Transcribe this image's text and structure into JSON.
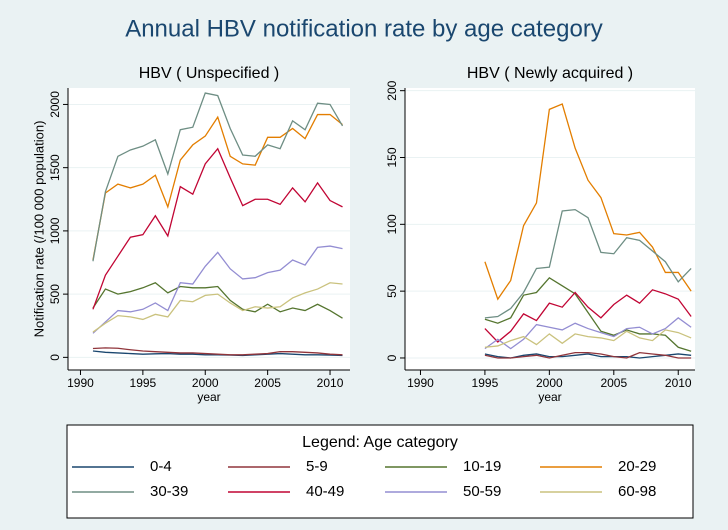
{
  "title": "Annual HBV notification rate by age category",
  "legend_title": "Legend: Age category",
  "chart_data": [
    {
      "type": "line",
      "title": "HBV ( Unspecified )",
      "xlabel": "year",
      "ylabel": "Notification rate (/100 000 population)",
      "x": [
        1991,
        1992,
        1993,
        1994,
        1995,
        1996,
        1997,
        1998,
        1999,
        2000,
        2001,
        2002,
        2003,
        2004,
        2005,
        2006,
        2007,
        2008,
        2009,
        2010,
        2011
      ],
      "xlim": [
        1989,
        2011.6
      ],
      "xticks": [
        1990,
        1995,
        2000,
        2005,
        2010
      ],
      "ylim": [
        -100,
        2130
      ],
      "yticks": [
        0,
        500,
        1000,
        1500,
        2000
      ],
      "grid": true,
      "series": [
        {
          "name": "0-4",
          "color": "#1a476f",
          "values": [
            50,
            40,
            35,
            30,
            25,
            28,
            30,
            25,
            25,
            20,
            20,
            18,
            15,
            20,
            25,
            30,
            25,
            20,
            20,
            18,
            15
          ]
        },
        {
          "name": "5-9",
          "color": "#90353b",
          "values": [
            70,
            75,
            72,
            60,
            50,
            45,
            40,
            35,
            35,
            30,
            25,
            20,
            20,
            25,
            30,
            45,
            45,
            40,
            35,
            25,
            20
          ]
        },
        {
          "name": "10-19",
          "color": "#55752f",
          "values": [
            390,
            540,
            500,
            520,
            550,
            590,
            510,
            560,
            550,
            550,
            560,
            450,
            380,
            360,
            420,
            360,
            390,
            370,
            420,
            370,
            310
          ]
        },
        {
          "name": "20-29",
          "color": "#e37e00",
          "values": [
            770,
            1300,
            1370,
            1340,
            1370,
            1440,
            1190,
            1560,
            1680,
            1750,
            1900,
            1590,
            1530,
            1520,
            1740,
            1740,
            1810,
            1730,
            1920,
            1920,
            1840
          ]
        },
        {
          "name": "30-39",
          "color": "#6e8e84",
          "values": [
            760,
            1310,
            1590,
            1640,
            1670,
            1720,
            1450,
            1800,
            1820,
            2090,
            2070,
            1810,
            1600,
            1590,
            1680,
            1650,
            1870,
            1800,
            2010,
            2000,
            1830
          ]
        },
        {
          "name": "40-49",
          "color": "#c10534",
          "values": [
            380,
            650,
            800,
            950,
            970,
            1120,
            960,
            1350,
            1290,
            1530,
            1650,
            1420,
            1200,
            1250,
            1250,
            1210,
            1340,
            1230,
            1380,
            1240,
            1190
          ]
        },
        {
          "name": "50-59",
          "color": "#938dd2",
          "values": [
            190,
            280,
            370,
            360,
            380,
            430,
            370,
            590,
            580,
            720,
            830,
            700,
            620,
            630,
            670,
            690,
            770,
            730,
            870,
            880,
            860
          ]
        },
        {
          "name": "60-98",
          "color": "#cac27e",
          "values": [
            200,
            270,
            330,
            320,
            300,
            340,
            320,
            450,
            440,
            490,
            500,
            430,
            370,
            400,
            390,
            400,
            470,
            510,
            540,
            590,
            580
          ]
        }
      ]
    },
    {
      "type": "line",
      "title": "HBV ( Newly acquired )",
      "xlabel": "year",
      "x": [
        1995,
        1996,
        1997,
        1998,
        1999,
        2000,
        2001,
        2002,
        2003,
        2004,
        2005,
        2006,
        2007,
        2008,
        2009,
        2010,
        2011
      ],
      "xlim": [
        1988.8,
        2011.3
      ],
      "xticks": [
        1990,
        1995,
        2000,
        2005,
        2010
      ],
      "ylim": [
        -9,
        202
      ],
      "yticks": [
        0,
        50,
        100,
        150,
        200
      ],
      "grid": true,
      "series": [
        {
          "name": "0-4",
          "color": "#1a476f",
          "values": [
            3,
            1,
            0,
            2,
            3,
            1,
            1,
            2,
            3,
            1,
            1,
            1,
            0,
            1,
            2,
            3,
            2
          ]
        },
        {
          "name": "5-9",
          "color": "#90353b",
          "values": [
            2,
            0,
            0,
            1,
            2,
            0,
            2,
            4,
            4,
            3,
            1,
            0,
            4,
            3,
            2,
            0,
            0
          ]
        },
        {
          "name": "10-19",
          "color": "#55752f",
          "values": [
            29,
            26,
            30,
            47,
            49,
            60,
            54,
            48,
            34,
            20,
            17,
            21,
            18,
            18,
            17,
            8,
            5
          ]
        },
        {
          "name": "20-29",
          "color": "#e37e00",
          "values": [
            72,
            44,
            58,
            99,
            116,
            186,
            190,
            157,
            133,
            120,
            93,
            92,
            94,
            83,
            64,
            64,
            50
          ]
        },
        {
          "name": "30-39",
          "color": "#6e8e84",
          "values": [
            30,
            31,
            37,
            49,
            67,
            68,
            110,
            111,
            105,
            79,
            78,
            90,
            88,
            80,
            72,
            57,
            67
          ]
        },
        {
          "name": "40-49",
          "color": "#c10534",
          "values": [
            22,
            12,
            20,
            33,
            28,
            41,
            38,
            49,
            38,
            30,
            40,
            47,
            41,
            51,
            48,
            44,
            31
          ]
        },
        {
          "name": "50-59",
          "color": "#938dd2",
          "values": [
            7,
            14,
            7,
            14,
            25,
            23,
            21,
            26,
            22,
            19,
            16,
            22,
            23,
            18,
            22,
            30,
            23
          ]
        },
        {
          "name": "60-98",
          "color": "#cac27e",
          "values": [
            8,
            9,
            13,
            16,
            10,
            18,
            11,
            18,
            16,
            15,
            13,
            20,
            15,
            13,
            21,
            19,
            15
          ]
        }
      ]
    }
  ]
}
